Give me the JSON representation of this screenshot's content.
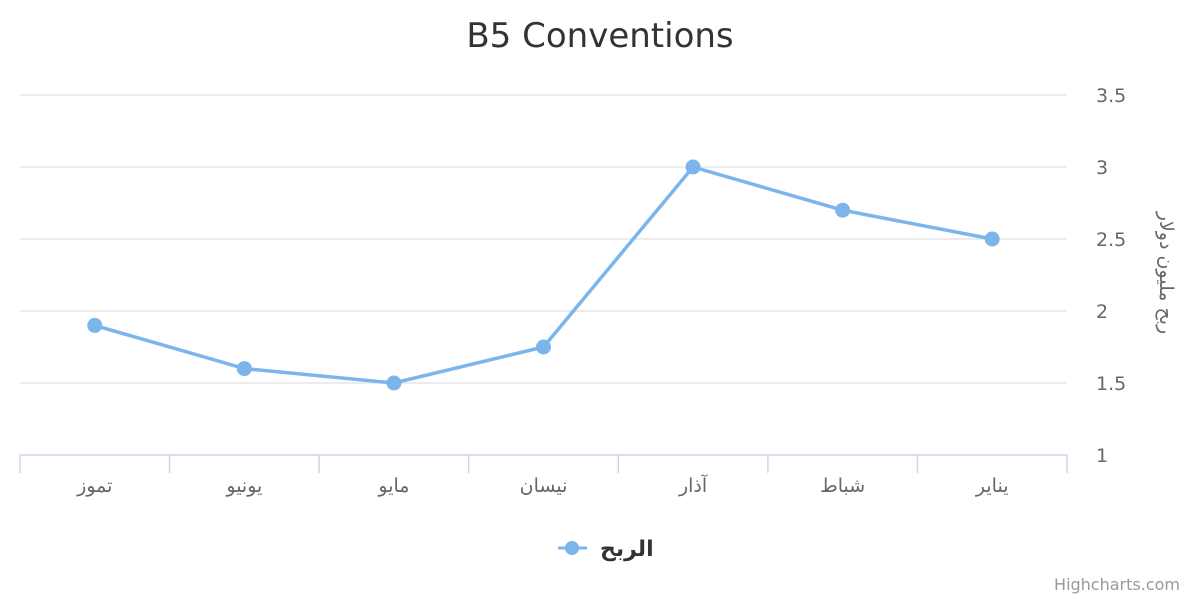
{
  "chart_data": {
    "type": "line",
    "title": "B5 Conventions",
    "categories": [
      "يناير",
      "شباط",
      "آذار",
      "نيسان",
      "مايو",
      "يونيو",
      "تموز"
    ],
    "series": [
      {
        "name": "الربح",
        "values": [
          2.5,
          2.7,
          3.0,
          1.75,
          1.5,
          1.6,
          1.9
        ],
        "color": "#7cb5ec"
      }
    ],
    "ylabel": "ربح مليون دولار",
    "ylim": [
      1,
      3.5
    ],
    "yticks": [
      "1",
      "1.5",
      "2",
      "2.5",
      "3",
      "3.5"
    ],
    "grid": true,
    "legend_position": "bottom-center",
    "x_reversed": true,
    "y_axis_side": "right"
  },
  "credits": "Highcharts.com"
}
